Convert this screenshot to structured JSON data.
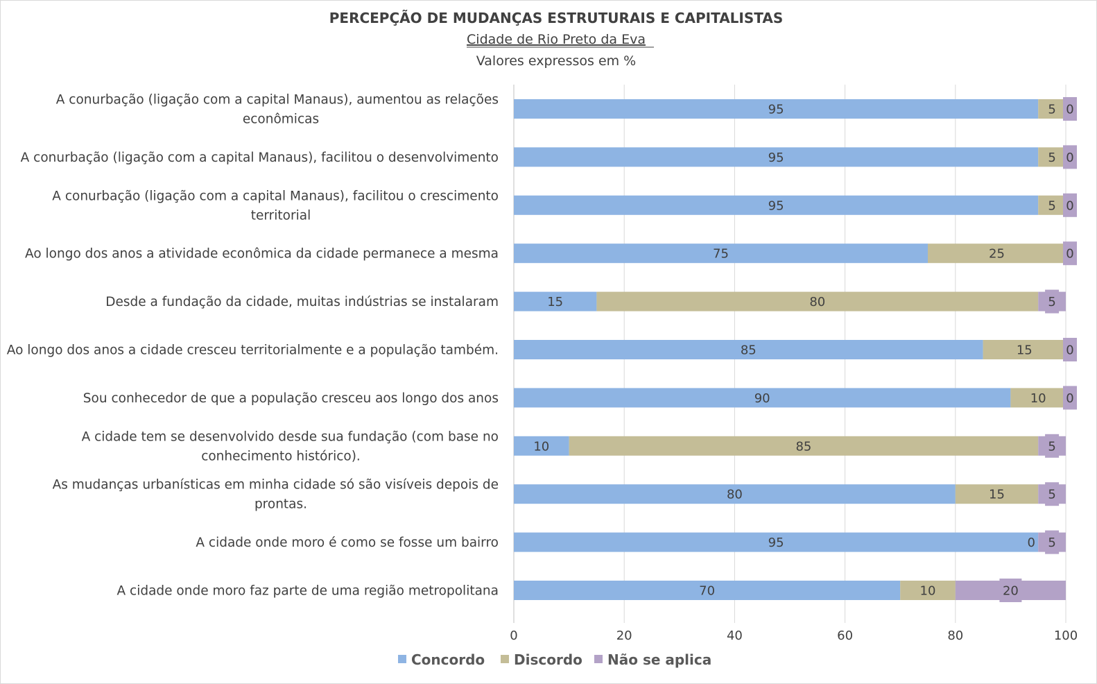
{
  "chart_data": {
    "type": "bar",
    "orientation": "horizontal",
    "stacked": true,
    "title": "PERCEPÇÃO DE MUDANÇAS ESTRUTURAIS E CAPITALISTAS",
    "subtitle": "Cidade de Rio Preto da Eva",
    "subtitle2": "Valores expressos em %",
    "categories": [
      [
        "A conurbação (ligação com a capital Manaus), aumentou as relações",
        "econômicas"
      ],
      [
        "A conurbação (ligação com a capital Manaus), facilitou o desenvolvimento"
      ],
      [
        "A conurbação (ligação com a capital Manaus), facilitou o crescimento",
        "territorial"
      ],
      [
        "Ao longo dos anos a atividade econômica da cidade permanece a mesma"
      ],
      [
        "Desde a fundação da cidade, muitas indústrias se instalaram"
      ],
      [
        "Ao longo dos anos a cidade cresceu territorialmente e a população também."
      ],
      [
        "Sou conhecedor de que a população cresceu aos longo dos anos"
      ],
      [
        "A cidade tem se desenvolvido desde sua fundação (com base no",
        "conhecimento histórico)."
      ],
      [
        "As mudanças urbanísticas em minha cidade só são visíveis depois de",
        "prontas."
      ],
      [
        "A cidade onde moro é como se fosse um bairro"
      ],
      [
        "A cidade onde moro faz parte de uma região metropolitana"
      ]
    ],
    "series": [
      {
        "name": "Concordo",
        "color": "#8eb4e3",
        "values": [
          95,
          95,
          95,
          75,
          15,
          85,
          90,
          10,
          80,
          95,
          70
        ]
      },
      {
        "name": "Discordo",
        "color": "#c4bd97",
        "values": [
          5,
          5,
          5,
          25,
          80,
          15,
          10,
          85,
          15,
          0,
          10
        ]
      },
      {
        "name": "Não se aplica",
        "color": "#b3a2c7",
        "values": [
          0,
          0,
          0,
          0,
          5,
          0,
          0,
          5,
          5,
          5,
          20
        ]
      }
    ],
    "xlim": [
      0,
      100
    ],
    "xticks": [
      0,
      20,
      40,
      60,
      80,
      100
    ],
    "grid": true,
    "legend": "bottom"
  }
}
